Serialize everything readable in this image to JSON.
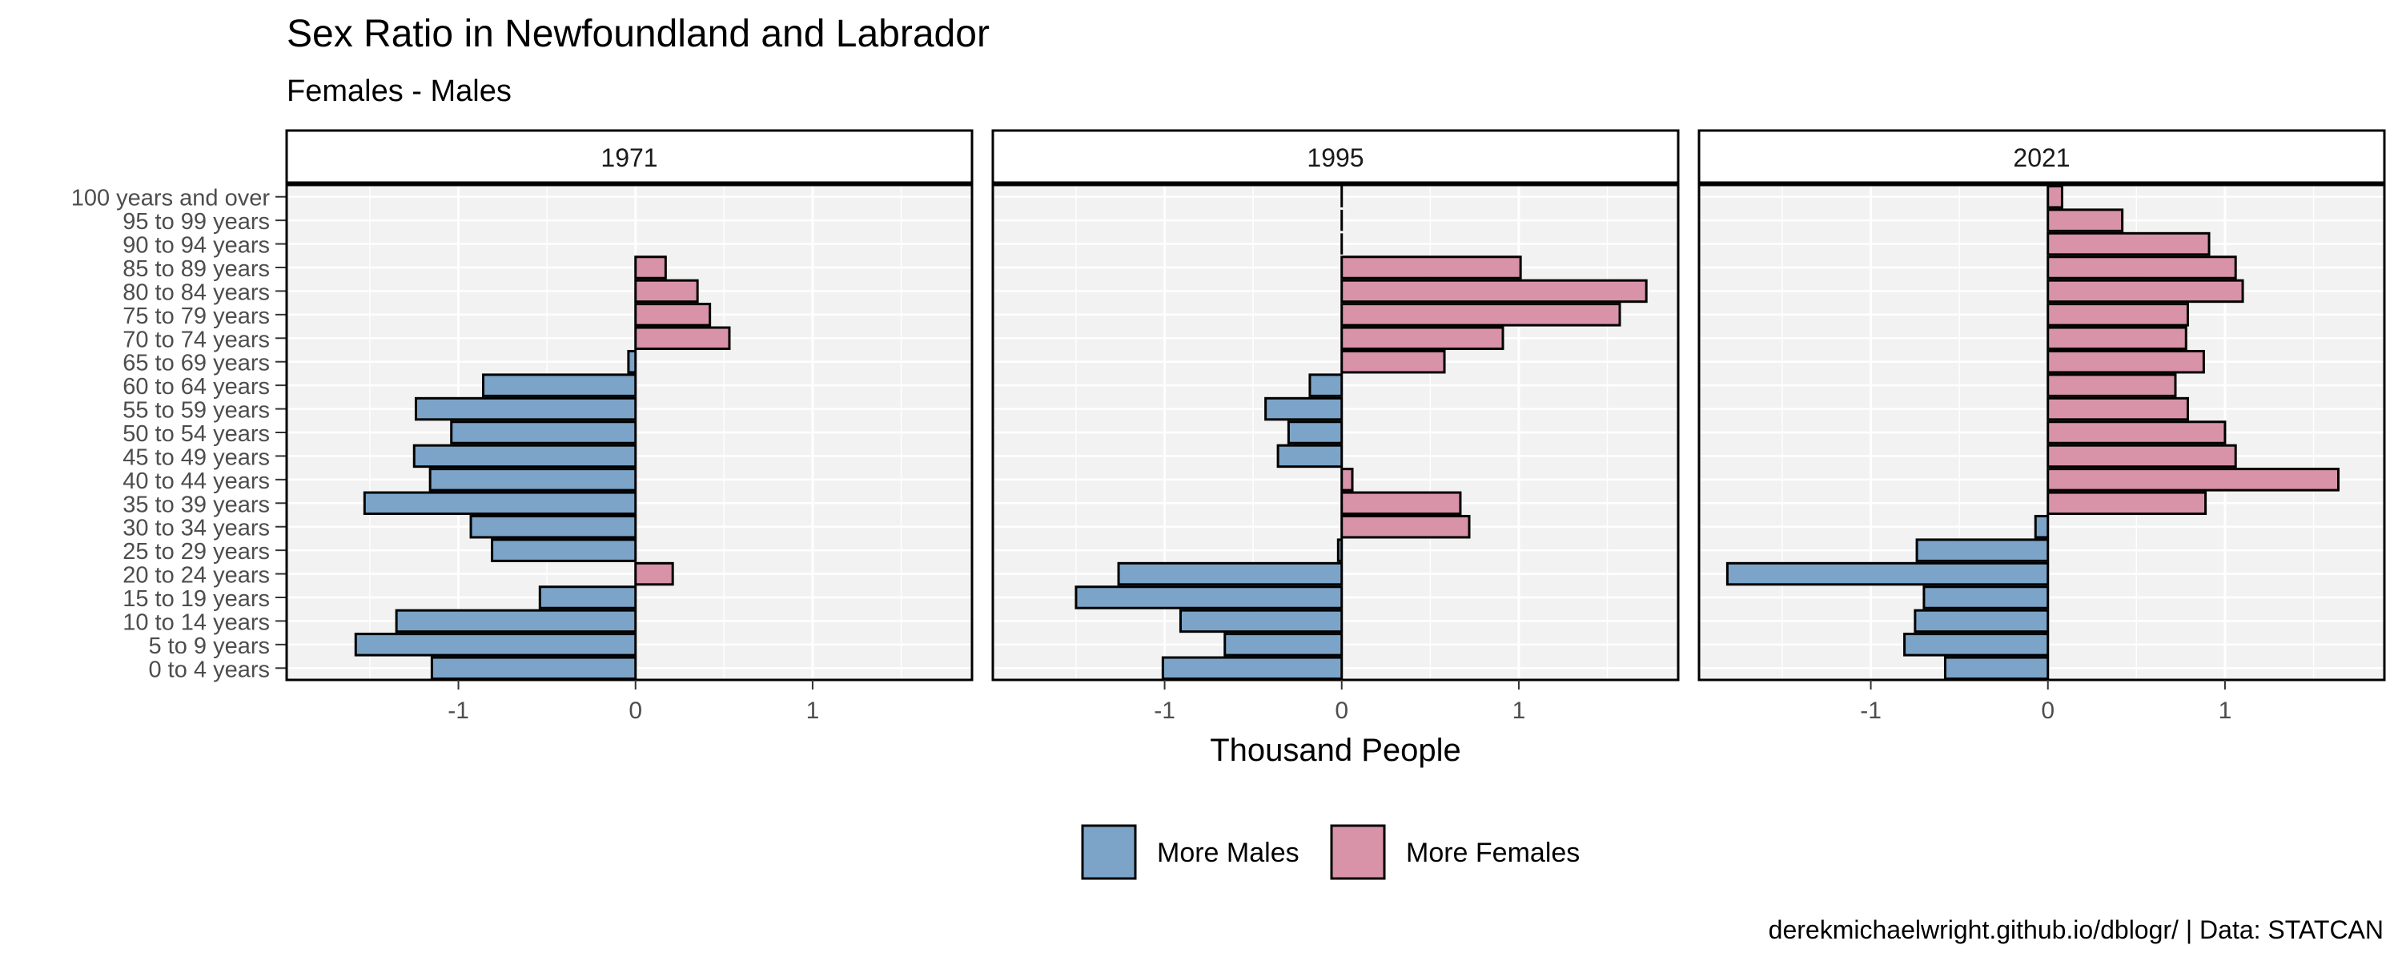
{
  "colors": {
    "more_males": "#7ba4c8",
    "more_females": "#d893a8",
    "panel_bg": "#f2f2f2",
    "grid": "#ffffff",
    "strip_border": "#000000",
    "axis_text": "#4d4d4d",
    "text": "#000000"
  },
  "chart_data": {
    "type": "bar",
    "orientation": "horizontal",
    "title": "Sex Ratio in Newfoundland and Labrador",
    "subtitle": "Females - Males",
    "xlabel": "Thousand People",
    "ylabel": "",
    "caption": "derekmichaelwright.github.io/dblogr/ | Data: STATCAN",
    "xlim": [
      -1.97,
      1.9
    ],
    "x_ticks": [
      -1,
      0,
      1
    ],
    "x_tick_labels": [
      "-1",
      "0",
      "1"
    ],
    "grid": true,
    "legend_position": "bottom",
    "legend": [
      {
        "label": "More Males",
        "color_key": "more_males"
      },
      {
        "label": "More Females",
        "color_key": "more_females"
      }
    ],
    "categories": [
      "0 to 4 years",
      "5 to 9 years",
      "10 to 14 years",
      "15 to 19 years",
      "20 to 24 years",
      "25 to 29 years",
      "30 to 34 years",
      "35 to 39 years",
      "40 to 44 years",
      "45 to 49 years",
      "50 to 54 years",
      "55 to 59 years",
      "60 to 64 years",
      "65 to 69 years",
      "70 to 74 years",
      "75 to 79 years",
      "80 to 84 years",
      "85 to 89 years",
      "90 to 94 years",
      "95 to 99 years",
      "100 years and over"
    ],
    "panels": [
      {
        "label": "1971",
        "values": [
          -1.15,
          -1.58,
          -1.35,
          -0.54,
          0.21,
          -0.81,
          -0.93,
          -1.53,
          -1.16,
          -1.25,
          -1.04,
          -1.24,
          -0.86,
          -0.04,
          0.53,
          0.42,
          0.35,
          0.17,
          null,
          null,
          null
        ]
      },
      {
        "label": "1995",
        "values": [
          -1.01,
          -0.66,
          -0.91,
          -1.5,
          -1.26,
          -0.02,
          0.72,
          0.67,
          0.06,
          -0.36,
          -0.3,
          -0.43,
          -0.18,
          0.58,
          0.91,
          1.57,
          1.72,
          1.01,
          0.0,
          0.0,
          0.0
        ]
      },
      {
        "label": "2021",
        "values": [
          -0.58,
          -0.81,
          -0.75,
          -0.7,
          -1.81,
          -0.74,
          -0.07,
          0.89,
          1.64,
          1.06,
          1.0,
          0.79,
          0.72,
          0.88,
          0.78,
          0.79,
          1.1,
          1.06,
          0.91,
          0.42,
          0.08
        ]
      }
    ]
  }
}
